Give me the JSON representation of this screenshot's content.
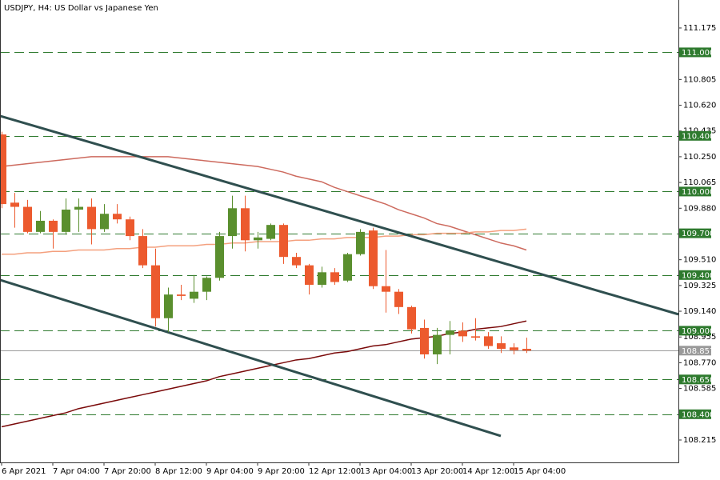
{
  "chart_data": {
    "type": "candlestick",
    "title": "USDJPY, H4:  US Dollar vs Japanese Yen",
    "categories": [
      "6 Apr 2021",
      null,
      null,
      null,
      "7 Apr 04:00",
      null,
      null,
      null,
      "7 Apr 20:00",
      null,
      null,
      null,
      "8 Apr 12:00",
      null,
      null,
      null,
      "9 Apr 04:00",
      null,
      null,
      null,
      "9 Apr 20:00",
      null,
      null,
      null,
      "12 Apr 12:00",
      null,
      null,
      null,
      "13 Apr 04:00",
      null,
      null,
      null,
      "13 Apr 20:00",
      null,
      null,
      null,
      "14 Apr 12:00",
      null,
      null,
      null,
      "15 Apr 04:00",
      null
    ],
    "open": [
      110.41,
      109.92,
      109.89,
      109.71,
      109.79,
      109.71,
      109.87,
      109.89,
      109.73,
      109.84,
      109.8,
      109.68,
      109.47,
      109.09,
      109.26,
      109.23,
      109.28,
      109.38,
      109.68,
      109.88,
      109.65,
      109.66,
      109.76,
      109.53,
      109.47,
      109.33,
      109.42,
      109.36,
      109.55,
      109.72,
      109.32,
      109.28,
      109.17,
      109.02,
      108.83,
      108.97,
      109.0,
      108.96,
      108.96,
      108.91,
      108.88,
      108.87
    ],
    "high": [
      110.43,
      109.99,
      109.94,
      109.86,
      109.8,
      109.95,
      109.95,
      109.95,
      109.91,
      109.91,
      109.82,
      109.73,
      109.59,
      109.31,
      109.33,
      109.4,
      109.39,
      109.71,
      109.97,
      109.97,
      109.71,
      109.77,
      109.77,
      109.56,
      109.48,
      109.46,
      109.45,
      109.56,
      109.73,
      109.74,
      109.58,
      109.3,
      109.18,
      109.08,
      109.02,
      109.07,
      109.06,
      109.09,
      108.99,
      108.96,
      108.91,
      108.95
    ],
    "low": [
      109.88,
      109.74,
      109.7,
      109.7,
      109.59,
      109.69,
      109.71,
      109.62,
      109.71,
      109.77,
      109.65,
      109.45,
      109.03,
      108.99,
      109.22,
      109.2,
      109.22,
      109.36,
      109.59,
      109.57,
      109.59,
      109.65,
      109.48,
      109.45,
      109.26,
      109.31,
      109.33,
      109.35,
      109.54,
      109.3,
      109.13,
      109.12,
      108.98,
      108.8,
      108.76,
      108.83,
      108.92,
      108.93,
      108.87,
      108.84,
      108.83,
      108.84
    ],
    "close": [
      109.91,
      109.89,
      109.71,
      109.79,
      109.71,
      109.87,
      109.89,
      109.73,
      109.84,
      109.8,
      109.68,
      109.47,
      109.09,
      109.26,
      109.25,
      109.28,
      109.38,
      109.68,
      109.88,
      109.65,
      109.67,
      109.76,
      109.53,
      109.47,
      109.33,
      109.42,
      109.35,
      109.55,
      109.71,
      109.32,
      109.28,
      109.17,
      109.01,
      108.83,
      108.97,
      109.0,
      108.96,
      108.95,
      108.89,
      108.87,
      108.86,
      108.857
    ],
    "up_color": "#5a8f2e",
    "down_color": "#ec5a2e",
    "series": [
      {
        "color": "#cd6a5e",
        "values": [
          110.18,
          110.19,
          110.2,
          110.21,
          110.22,
          110.23,
          110.24,
          110.25,
          110.25,
          110.25,
          110.25,
          110.25,
          110.25,
          110.25,
          110.24,
          110.23,
          110.22,
          110.21,
          110.2,
          110.19,
          110.18,
          110.16,
          110.14,
          110.11,
          110.09,
          110.07,
          110.03,
          110.0,
          109.97,
          109.94,
          109.91,
          109.87,
          109.84,
          109.81,
          109.77,
          109.75,
          109.72,
          109.69,
          109.66,
          109.63,
          109.61,
          109.58
        ]
      },
      {
        "color": "#f4a07e",
        "values": [
          109.55,
          109.55,
          109.56,
          109.56,
          109.57,
          109.57,
          109.58,
          109.58,
          109.58,
          109.59,
          109.59,
          109.6,
          109.6,
          109.61,
          109.61,
          109.61,
          109.62,
          109.62,
          109.63,
          109.63,
          109.64,
          109.64,
          109.64,
          109.65,
          109.65,
          109.66,
          109.66,
          109.67,
          109.67,
          109.67,
          109.68,
          109.68,
          109.69,
          109.69,
          109.7,
          109.7,
          109.7,
          109.71,
          109.71,
          109.72,
          109.72,
          109.73
        ]
      },
      {
        "color": "#7a0a0a",
        "values": [
          108.31,
          108.33,
          108.35,
          108.37,
          108.39,
          108.41,
          108.44,
          108.46,
          108.48,
          108.5,
          108.52,
          108.54,
          108.56,
          108.58,
          108.6,
          108.62,
          108.64,
          108.67,
          108.69,
          108.71,
          108.73,
          108.75,
          108.77,
          108.79,
          108.8,
          108.82,
          108.84,
          108.85,
          108.87,
          108.89,
          108.9,
          108.92,
          108.94,
          108.95,
          108.96,
          108.98,
          108.99,
          109.01,
          109.02,
          109.03,
          109.05,
          109.07
        ]
      }
    ],
    "trendlines": [
      {
        "color": "#2f4f4f",
        "x": [
          -0.125,
          52.875
        ],
        "values": [
          110.543,
          109.118
        ]
      },
      {
        "color": "#2f4f4f",
        "x": [
          -0.125,
          39
        ],
        "values": [
          109.365,
          108.244
        ]
      }
    ],
    "levels": [
      {
        "value": 111,
        "label": "111.000"
      },
      {
        "value": 110.4,
        "label": "110.400"
      },
      {
        "value": 110,
        "label": "110.000"
      },
      {
        "value": 109.7,
        "label": "109.700"
      },
      {
        "value": 109.4,
        "label": "109.400"
      },
      {
        "value": 109,
        "label": "109.000"
      },
      {
        "value": 108.65,
        "label": "108.650"
      },
      {
        "value": 108.4,
        "label": "108.400"
      }
    ],
    "level_color": "#2e7a2e",
    "last_price": 108.857,
    "last_price_color": "#9a9a9a",
    "xlim": [
      -0.125,
      52.875
    ],
    "ylim": [
      108.054,
      111.376
    ],
    "yticks": [
      111.175,
      110.805,
      {
        "value": 110.62,
        "label": "110.620"
      },
      110.435,
      {
        "value": 110.25,
        "label": "110.250"
      },
      110.065,
      {
        "value": 109.88,
        "label": "109.880"
      },
      {
        "value": 109.51,
        "label": "109.510"
      },
      109.325,
      {
        "value": 109.14,
        "label": "109.140"
      },
      108.955,
      {
        "value": 108.77,
        "label": "108.770"
      },
      108.585,
      108.215
    ],
    "grid": false
  }
}
